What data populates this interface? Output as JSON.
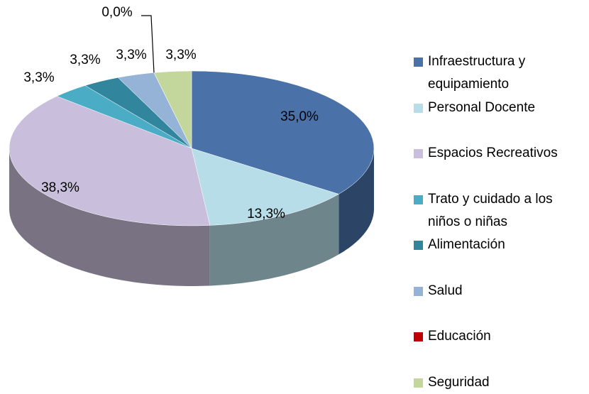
{
  "chart_data": {
    "type": "pie",
    "categories": [
      "Infraestructura y equipamiento",
      "Personal Docente",
      "Espacios Recreativos",
      "Trato y cuidado a los niños o niñas",
      "Alimentación",
      "Salud",
      "Educación",
      "Seguridad"
    ],
    "values": [
      35.0,
      13.3,
      38.3,
      3.3,
      3.3,
      3.3,
      0.0,
      3.3
    ],
    "value_labels": [
      "35,0%",
      "13,3%",
      "38,3%",
      "3,3%",
      "3,3%",
      "3,3%",
      "0,0%",
      "3,3%"
    ],
    "colors": [
      "#4a72a8",
      "#b7dde8",
      "#c9bedb",
      "#4bacc6",
      "#31859c",
      "#95b3d7",
      "#c00000",
      "#c3d69b"
    ],
    "legend": "right"
  }
}
